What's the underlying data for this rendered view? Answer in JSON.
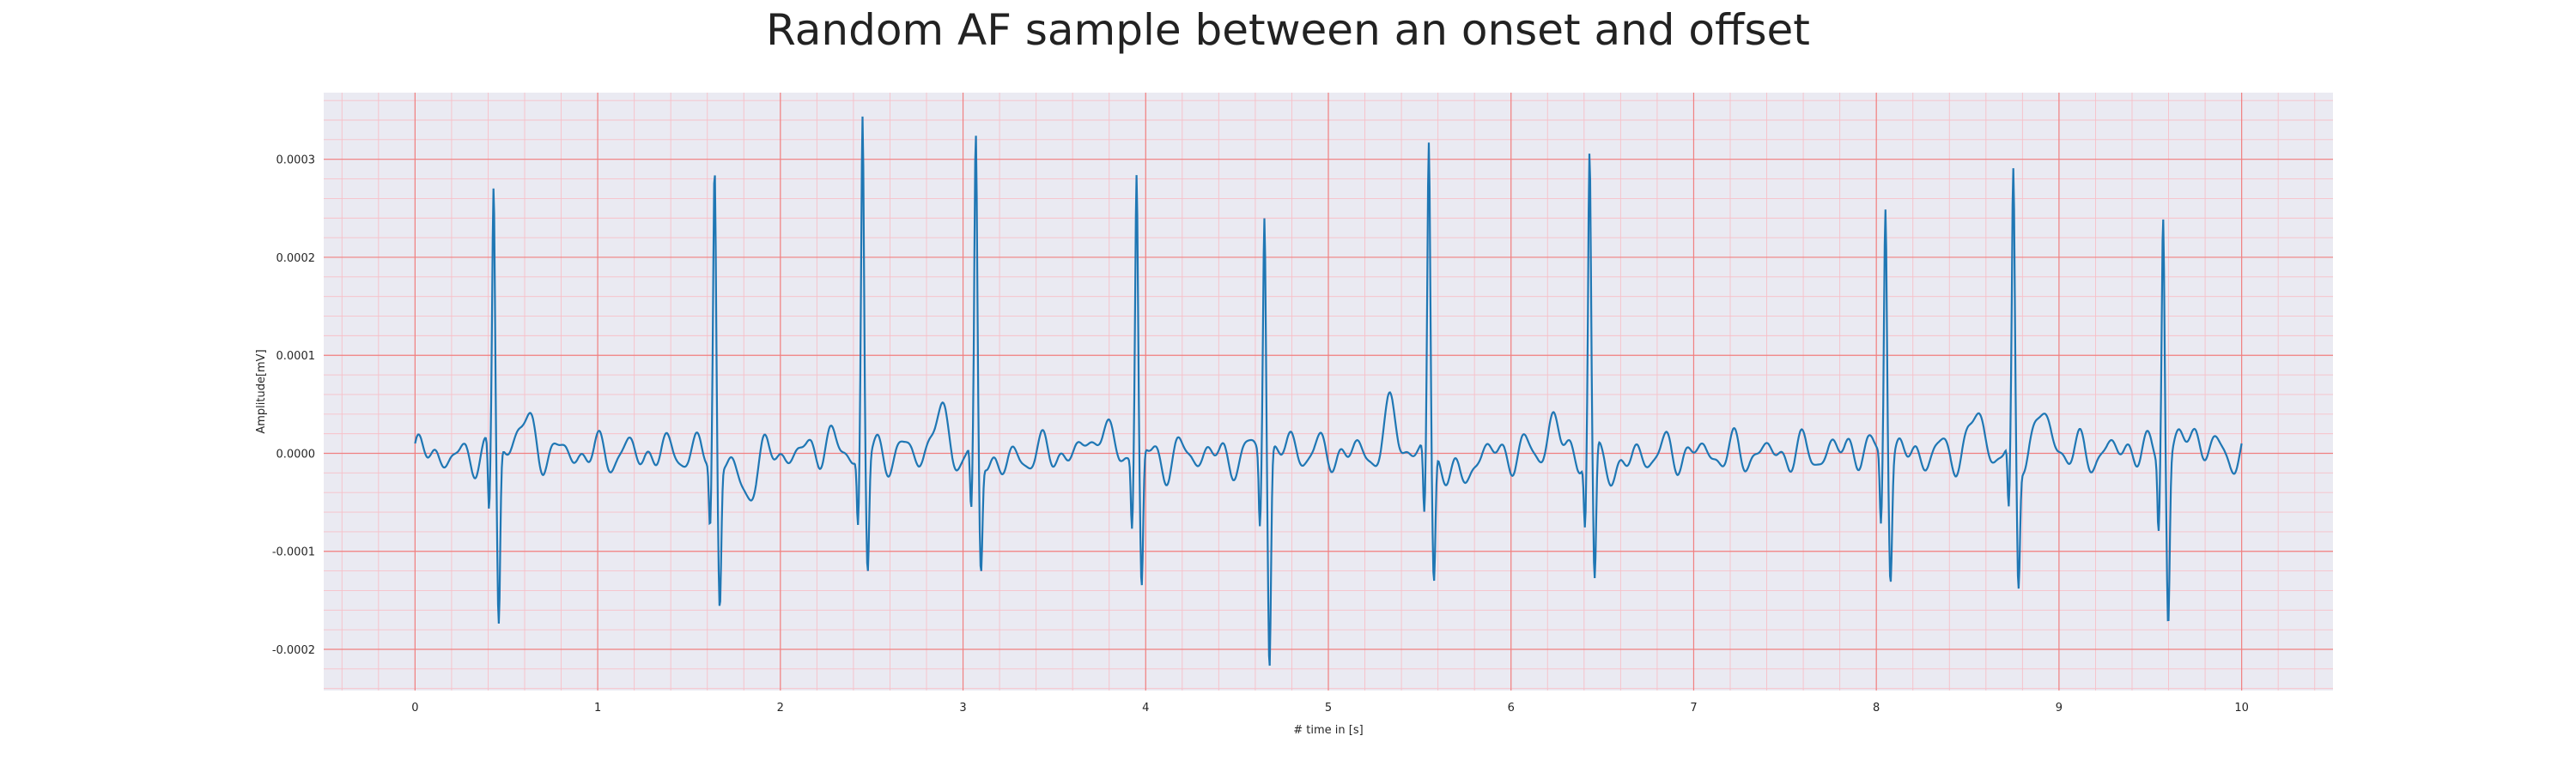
{
  "chart_data": {
    "type": "line",
    "title": "Random AF sample between an onset and offset",
    "xlabel": "# time in [s]",
    "ylabel": "Amplitude[mV]",
    "xlim": [
      -0.5,
      10.5
    ],
    "ylim": [
      -0.000242,
      0.000368
    ],
    "x_ticks": [
      0,
      1,
      2,
      3,
      4,
      5,
      6,
      7,
      8,
      9,
      10
    ],
    "x_tick_labels": [
      "0",
      "1",
      "2",
      "3",
      "4",
      "5",
      "6",
      "7",
      "8",
      "9",
      "10"
    ],
    "y_ticks": [
      -0.0002,
      -0.0001,
      0.0,
      0.0001,
      0.0002,
      0.0003
    ],
    "y_tick_labels": [
      "-0.0002",
      "-0.0001",
      "0.0000",
      "0.0001",
      "0.0002",
      "0.0003"
    ],
    "grid": {
      "major": true,
      "minor": true,
      "major_color": "#f08080",
      "minor_color": "#f7c0c8"
    },
    "background_color": "#eaeaf2",
    "series": [
      {
        "color": "#1f77b4",
        "x_start": 0,
        "x_end": 10,
        "peaks": [
          {
            "t": 0.43,
            "r": 0.00027,
            "s": -0.000178
          },
          {
            "t": 1.64,
            "r": 0.00029,
            "s": -0.00015
          },
          {
            "t": 2.45,
            "r": 0.000342,
            "s": -0.00012
          },
          {
            "t": 3.07,
            "r": 0.000308,
            "s": -0.000122
          },
          {
            "t": 3.95,
            "r": 0.000288,
            "s": -0.000142
          },
          {
            "t": 4.65,
            "r": 0.000258,
            "s": -0.000215
          },
          {
            "t": 5.55,
            "r": 0.000314,
            "s": -0.000133
          },
          {
            "t": 6.43,
            "r": 0.0003,
            "s": -0.000141
          },
          {
            "t": 8.05,
            "r": 0.000264,
            "s": -0.000117
          },
          {
            "t": 8.75,
            "r": 0.00027,
            "s": -0.000135
          },
          {
            "t": 9.57,
            "r": 0.000254,
            "s": -0.000166
          }
        ]
      }
    ]
  }
}
